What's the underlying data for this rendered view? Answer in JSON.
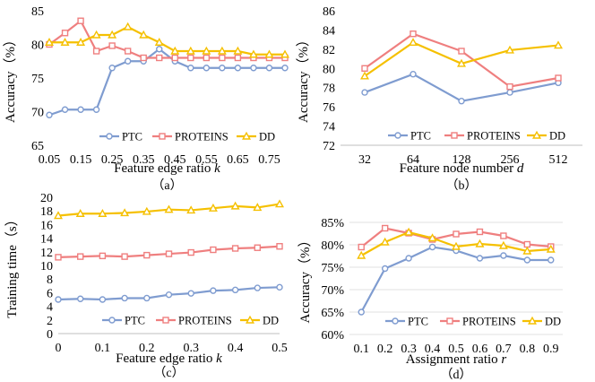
{
  "chart_data": [
    {
      "id": "a",
      "type": "line",
      "caption": "（a）",
      "xlabel": "Feature edge ratio",
      "xvar": "k",
      "ylabel": "Accuracy（%）",
      "xticks": [
        "0.05",
        "0.15",
        "0.25",
        "0.35",
        "0.45",
        "0.55",
        "0.65",
        "0.75"
      ],
      "x": [
        0.05,
        0.1,
        0.15,
        0.2,
        0.25,
        0.3,
        0.35,
        0.4,
        0.45,
        0.5,
        0.55,
        0.6,
        0.65,
        0.7,
        0.75,
        0.8
      ],
      "xlim": [
        0.05,
        0.8
      ],
      "ylim": [
        65,
        85
      ],
      "yticks": [
        65,
        70,
        75,
        80,
        85
      ],
      "yticklabels": [
        "65",
        "70",
        "75",
        "80",
        "85"
      ],
      "series": [
        {
          "name": "PTC",
          "values": [
            69.5,
            70.3,
            70.3,
            70.3,
            76.5,
            77.5,
            77.5,
            79.3,
            77.5,
            76.5,
            76.5,
            76.5,
            76.5,
            76.5,
            76.5,
            76.5
          ]
        },
        {
          "name": "PROTEINS",
          "values": [
            80.0,
            81.7,
            83.5,
            79.0,
            79.8,
            79.0,
            78.0,
            78.0,
            78.0,
            78.0,
            78.0,
            78.0,
            78.0,
            78.0,
            78.0,
            78.0
          ]
        },
        {
          "name": "DD",
          "values": [
            80.3,
            80.3,
            80.3,
            81.4,
            81.4,
            82.6,
            81.4,
            80.3,
            79.0,
            79.0,
            79.0,
            79.0,
            79.0,
            78.5,
            78.5,
            78.5
          ]
        }
      ]
    },
    {
      "id": "b",
      "type": "line",
      "caption": "（b）",
      "xlabel": "Feature node number",
      "xvar": "d",
      "ylabel": "Accuracy（%）",
      "xticks": [
        "32",
        "64",
        "128",
        "256",
        "512"
      ],
      "x": [
        0,
        1,
        2,
        3,
        4
      ],
      "xlim": [
        -0.5,
        4.5
      ],
      "ylim": [
        72,
        86
      ],
      "yticks": [
        72,
        74,
        76,
        78,
        80,
        82,
        84,
        86
      ],
      "yticklabels": [
        "72",
        "74",
        "76",
        "78",
        "80",
        "82",
        "84",
        "86"
      ],
      "series": [
        {
          "name": "PTC",
          "values": [
            77.5,
            79.4,
            76.6,
            77.5,
            78.5
          ]
        },
        {
          "name": "PROTEINS",
          "values": [
            80.0,
            83.6,
            81.8,
            78.1,
            79.0
          ]
        },
        {
          "name": "DD",
          "values": [
            79.2,
            82.7,
            80.5,
            81.9,
            82.4
          ]
        }
      ]
    },
    {
      "id": "c",
      "type": "line",
      "caption": "（c）",
      "xlabel": "Feature edge ratio",
      "xvar": "k",
      "ylabel": "Training time（s）",
      "xticks": [
        "0",
        "0.1",
        "0.2",
        "0.3",
        "0.4",
        "0.5"
      ],
      "x": [
        0,
        0.05,
        0.1,
        0.15,
        0.2,
        0.25,
        0.3,
        0.35,
        0.4,
        0.45,
        0.5
      ],
      "xlim": [
        0,
        0.5
      ],
      "ylim": [
        0,
        20
      ],
      "yticks": [
        0,
        2,
        4,
        6,
        8,
        10,
        12,
        14,
        16,
        18,
        20
      ],
      "yticklabels": [
        "0",
        "2",
        "4",
        "6",
        "8",
        "10",
        "12",
        "14",
        "16",
        "18",
        "20"
      ],
      "series": [
        {
          "name": "PTC",
          "values": [
            5.0,
            5.1,
            5.0,
            5.2,
            5.2,
            5.7,
            5.9,
            6.3,
            6.4,
            6.7,
            6.8
          ]
        },
        {
          "name": "PROTEINS",
          "values": [
            11.2,
            11.3,
            11.4,
            11.3,
            11.5,
            11.7,
            11.9,
            12.3,
            12.5,
            12.6,
            12.8
          ]
        },
        {
          "name": "DD",
          "values": [
            17.3,
            17.6,
            17.6,
            17.7,
            17.9,
            18.2,
            18.1,
            18.4,
            18.7,
            18.5,
            19.0
          ]
        }
      ]
    },
    {
      "id": "d",
      "type": "line",
      "caption": "（d）",
      "xlabel": "Assignment ratio",
      "xvar": "r",
      "ylabel": "Accuracy（%）",
      "xticks": [
        "0.1",
        "0.2",
        "0.3",
        "0.4",
        "0.5",
        "0.6",
        "0.7",
        "0.8",
        "0.9"
      ],
      "x": [
        0.1,
        0.2,
        0.3,
        0.4,
        0.5,
        0.6,
        0.7,
        0.8,
        0.9
      ],
      "xlim": [
        0.05,
        0.95
      ],
      "ylim": [
        60,
        85
      ],
      "yticks": [
        60,
        65,
        70,
        75,
        80,
        85
      ],
      "yticklabels": [
        "60%",
        "65%",
        "70%",
        "75%",
        "80%",
        "85%"
      ],
      "series": [
        {
          "name": "PTC",
          "values": [
            65.0,
            74.7,
            77.0,
            79.5,
            78.7,
            77.0,
            77.6,
            76.6,
            76.6
          ]
        },
        {
          "name": "PROTEINS",
          "values": [
            79.5,
            83.7,
            82.6,
            81.2,
            82.4,
            82.9,
            82.0,
            80.1,
            79.6
          ]
        },
        {
          "name": "DD",
          "values": [
            77.6,
            80.6,
            82.8,
            81.5,
            79.6,
            80.2,
            79.8,
            78.6,
            79.0
          ]
        }
      ]
    }
  ],
  "colors": {
    "PTC": "#7f9cd0",
    "PROTEINS": "#ef7f7f",
    "DD": "#f5c000"
  },
  "markers": {
    "PTC": "circle",
    "PROTEINS": "square",
    "DD": "triangle"
  }
}
